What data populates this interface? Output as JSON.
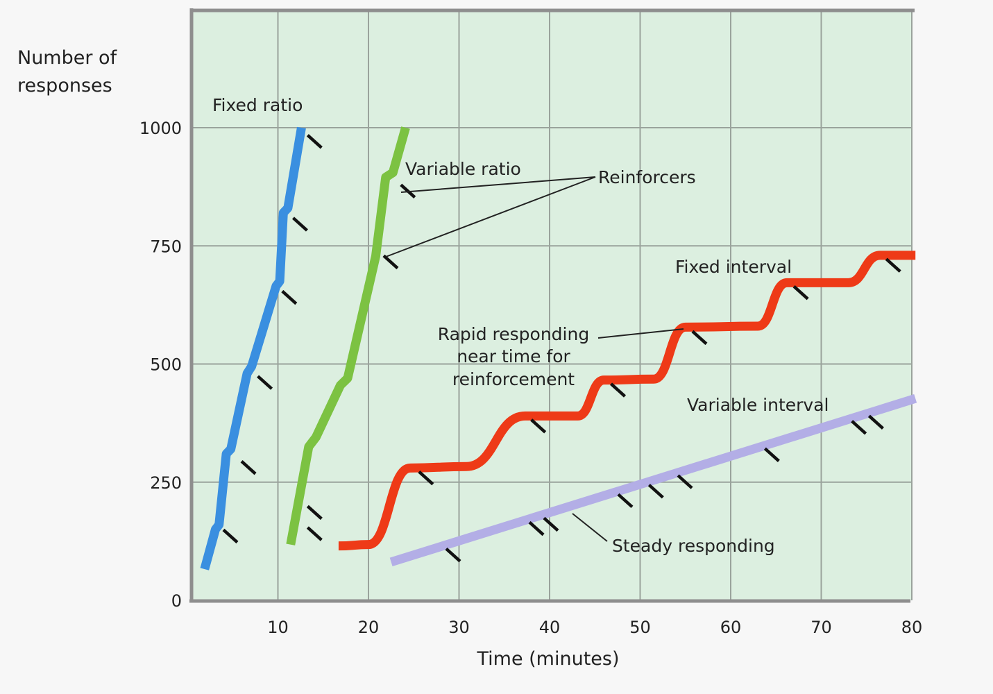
{
  "chart_data": {
    "type": "line",
    "title": "",
    "xlabel": "Time (minutes)",
    "ylabel": "Number of responses",
    "ylabel_lines": [
      "Number of",
      "responses"
    ],
    "xlim": [
      0,
      80
    ],
    "ylim": [
      0,
      1250
    ],
    "grid": true,
    "x_ticks": [
      10,
      20,
      30,
      40,
      50,
      60,
      70,
      80
    ],
    "y_ticks": [
      0,
      250,
      500,
      750,
      1000
    ],
    "colors": {
      "background": "#dcefe0",
      "grid": "#9aa39c",
      "axis": "#8e8e8e",
      "tick_marks": "#111111"
    },
    "series": [
      {
        "name": "Fixed ratio",
        "color": "#3a8fe0",
        "points": [
          [
            1.9,
            66
          ],
          [
            3.1,
            150
          ],
          [
            3.5,
            160
          ],
          [
            4.3,
            310
          ],
          [
            4.8,
            320
          ],
          [
            6.6,
            480
          ],
          [
            7.1,
            495
          ],
          [
            9.8,
            665
          ],
          [
            10.2,
            675
          ],
          [
            10.6,
            820
          ],
          [
            11.1,
            830
          ],
          [
            12.6,
            1000
          ]
        ],
        "reinforcers": [
          [
            3.6,
            155
          ],
          [
            5.6,
            300
          ],
          [
            7.4,
            480
          ],
          [
            10.1,
            660
          ],
          [
            11.3,
            815
          ],
          [
            12.9,
            990
          ]
        ]
      },
      {
        "name": "Variable ratio",
        "color": "#7cc242",
        "points": [
          [
            11.4,
            118
          ],
          [
            13.4,
            325
          ],
          [
            14.2,
            345
          ],
          [
            16.9,
            455
          ],
          [
            17.7,
            470
          ],
          [
            20.8,
            728
          ],
          [
            21.9,
            895
          ],
          [
            22.7,
            905
          ],
          [
            24.1,
            1000
          ]
        ],
        "reinforcers": [
          [
            12.9,
            205
          ],
          [
            12.9,
            160
          ],
          [
            21.3,
            735
          ],
          [
            23.2,
            885
          ]
        ]
      },
      {
        "name": "Fixed interval",
        "color": "#ee3a17",
        "smooth": true,
        "points": [
          [
            16.7,
            115
          ],
          [
            20,
            118
          ],
          [
            24.6,
            280
          ],
          [
            30.8,
            283
          ],
          [
            37.3,
            390
          ],
          [
            43.1,
            390
          ],
          [
            46,
            466
          ],
          [
            51.5,
            468
          ],
          [
            55,
            578
          ],
          [
            63,
            580
          ],
          [
            66.2,
            672
          ],
          [
            73,
            672
          ],
          [
            76.5,
            730
          ],
          [
            80.4,
            730
          ]
        ],
        "reinforcers": [
          [
            25.2,
            278
          ],
          [
            37.6,
            388
          ],
          [
            46.4,
            464
          ],
          [
            55.4,
            575
          ],
          [
            66.6,
            670
          ],
          [
            76.8,
            728
          ]
        ]
      },
      {
        "name": "Variable interval",
        "color": "#b3aee6",
        "points": [
          [
            22.5,
            81
          ],
          [
            80.4,
            427
          ]
        ],
        "reinforcers": [
          [
            28.2,
            115
          ],
          [
            37.4,
            171
          ],
          [
            39,
            180
          ],
          [
            47.2,
            230
          ],
          [
            50.6,
            250
          ],
          [
            53.8,
            270
          ],
          [
            63.4,
            327
          ],
          [
            73,
            385
          ],
          [
            74.9,
            396
          ]
        ]
      }
    ],
    "annotations": {
      "fixed_ratio": "Fixed ratio",
      "variable_ratio": "Variable ratio",
      "reinforcers": "Reinforcers",
      "fixed_interval": "Fixed interval",
      "rapid_responding": [
        "Rapid responding",
        "near time for",
        "reinforcement"
      ],
      "variable_interval": "Variable interval",
      "steady_responding": "Steady responding"
    }
  }
}
